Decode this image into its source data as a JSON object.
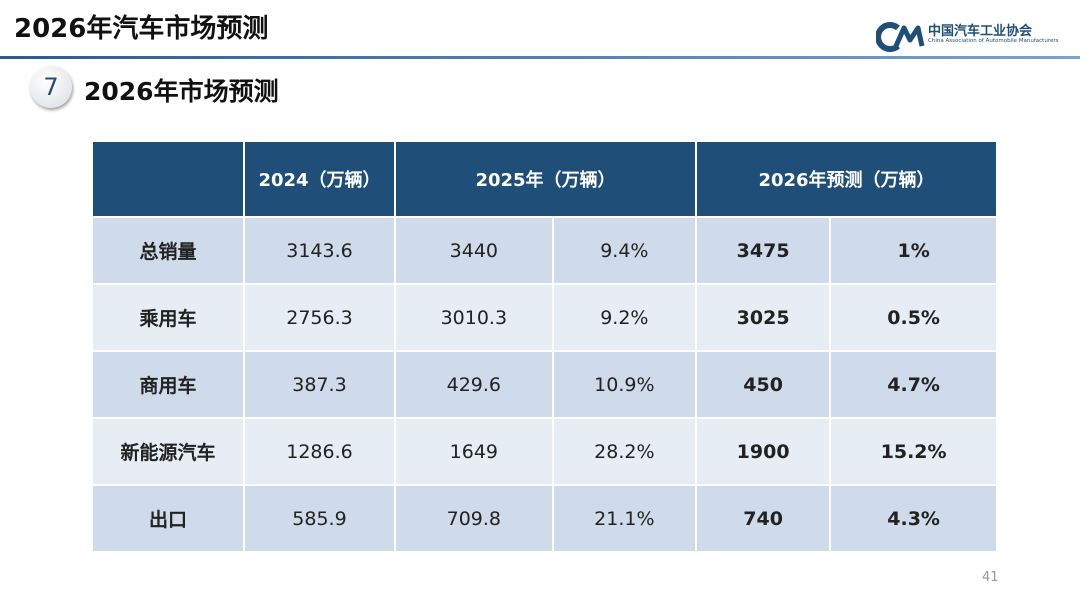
{
  "header": {
    "title": "2026年汽车市场预测",
    "logo_name": "中国汽车工业协会",
    "logo_subtitle": "China Association of Automobile Manufacturers"
  },
  "section": {
    "number": "7",
    "title": "2026年市场预测"
  },
  "table": {
    "columns": [
      "2024（万辆）",
      "2025年（万辆）",
      "2026年预测（万辆）"
    ],
    "rows": [
      [
        "总销量",
        "3143.6",
        "3440",
        "9.4%",
        "3475",
        "1%"
      ],
      [
        "乘用车",
        "2756.3",
        "3010.3",
        "9.2%",
        "3025",
        "0.5%"
      ],
      [
        "商用车",
        "387.3",
        "429.6",
        "10.9%",
        "450",
        "4.7%"
      ],
      [
        "新能源汽车",
        "1286.6",
        "1649",
        "28.2%",
        "1900",
        "15.2%"
      ],
      [
        "出口",
        "585.9",
        "709.8",
        "21.1%",
        "740",
        "4.3%"
      ]
    ]
  },
  "page_number": "41"
}
